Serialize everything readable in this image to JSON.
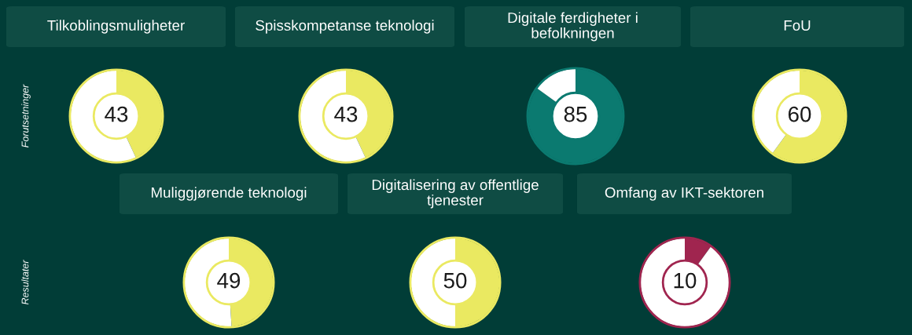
{
  "chart_data": [
    {
      "type": "donut",
      "title": "Tilkoblingsmuligheter",
      "categories": [
        null,
        null
      ],
      "values": [
        43,
        57
      ],
      "colors": [
        "#eae961",
        "#ffffff"
      ],
      "value_labels": [
        "43",
        null
      ],
      "annotations": [
        "Forutsetninger"
      ]
    },
    {
      "type": "donut",
      "title": "Spisskompetanse teknologi",
      "categories": [
        null,
        null
      ],
      "values": [
        43,
        57
      ],
      "colors": [
        "#eae961",
        "#ffffff"
      ],
      "value_labels": [
        "43",
        null
      ]
    },
    {
      "type": "donut",
      "title": "Digitale ferdigheter i\nbefolkningen",
      "categories": [
        null,
        null
      ],
      "values": [
        85,
        15
      ],
      "colors": [
        "#0b7a70",
        "#ffffff"
      ],
      "value_labels": [
        "85",
        null
      ]
    },
    {
      "type": "donut",
      "title": "FoU",
      "categories": [
        null,
        null
      ],
      "values": [
        60,
        40
      ],
      "colors": [
        "#eae961",
        "#ffffff"
      ],
      "value_labels": [
        "60",
        null
      ]
    },
    {
      "type": "donut",
      "title": "Muliggjørende teknologi",
      "categories": [
        null,
        null
      ],
      "values": [
        49,
        51
      ],
      "colors": [
        "#eae961",
        "#ffffff"
      ],
      "value_labels": [
        "49",
        null
      ],
      "annotations": [
        "Resultater"
      ]
    },
    {
      "type": "donut",
      "title": "Digitalisering av offentlige\ntjenester",
      "categories": [
        null,
        null
      ],
      "values": [
        50,
        50
      ],
      "colors": [
        "#eae961",
        "#ffffff"
      ],
      "value_labels": [
        "50",
        null
      ]
    },
    {
      "type": "donut",
      "title": "Omfang av IKT-sektoren",
      "categories": [
        null,
        null
      ],
      "values": [
        10,
        90
      ],
      "colors": [
        "#a0254f",
        "#ffffff"
      ],
      "value_labels": [
        "10",
        null
      ]
    }
  ]
}
